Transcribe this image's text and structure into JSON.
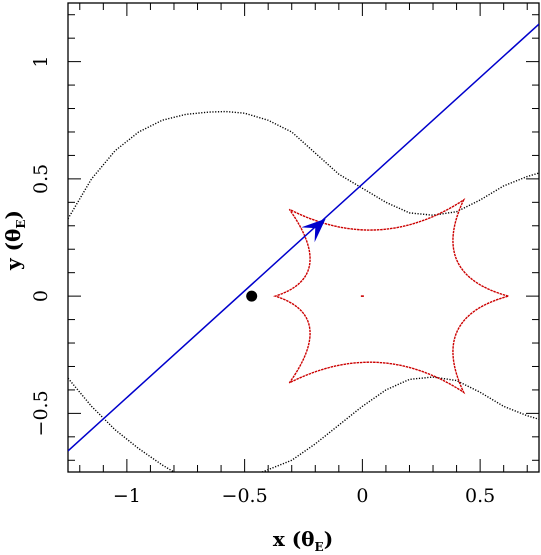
{
  "chart_data": {
    "type": "line",
    "xlim": [
      -1.25,
      0.75
    ],
    "ylim": [
      -0.75,
      1.25
    ],
    "xticks": [
      -1,
      -0.5,
      0,
      0.5
    ],
    "yticks": [
      -0.5,
      0,
      0.5,
      1
    ],
    "xtick_labels": [
      "−1",
      "−0.5",
      "0",
      "0.5"
    ],
    "ytick_labels": [
      "−0.5",
      "0",
      "0.5",
      "1"
    ],
    "xlabel": {
      "main": "x (θ",
      "sub": "E",
      "close": ")"
    },
    "ylabel": {
      "main": "y (θ",
      "sub": "E",
      "close": ")"
    },
    "grid": false,
    "colors": {
      "critical_curve": "#000000",
      "caustic": "#cc0000",
      "trajectory": "#0000cc",
      "lens": "#000000"
    },
    "trajectory": {
      "x": [
        -1.25,
        0.75
      ],
      "y": [
        -0.66,
        1.16
      ]
    },
    "trajectory_arrow": {
      "x": -0.2,
      "y": 0.29
    },
    "lens_point": {
      "x": -0.47,
      "y": 0.0
    },
    "central_caustic_point": {
      "x": 0.0,
      "y": 0.0
    },
    "caustic_cusps": [
      {
        "x": 0.62,
        "y": 0.0
      },
      {
        "x": 0.43,
        "y": 0.41
      },
      {
        "x": -0.31,
        "y": 0.37
      },
      {
        "x": -0.37,
        "y": 0.0
      },
      {
        "x": -0.31,
        "y": -0.37
      },
      {
        "x": 0.43,
        "y": -0.41
      }
    ],
    "critical_curve_upper": {
      "x": [
        -1.25,
        -1.15,
        -1.05,
        -0.95,
        -0.85,
        -0.75,
        -0.65,
        -0.58,
        -0.5,
        -0.4,
        -0.3,
        -0.2,
        -0.1,
        0.0,
        0.1,
        0.2,
        0.3,
        0.4,
        0.5,
        0.6,
        0.7,
        0.75
      ],
      "y": [
        0.33,
        0.5,
        0.62,
        0.7,
        0.75,
        0.775,
        0.785,
        0.787,
        0.78,
        0.75,
        0.7,
        0.61,
        0.52,
        0.46,
        0.4,
        0.355,
        0.345,
        0.36,
        0.41,
        0.47,
        0.51,
        0.525
      ]
    },
    "critical_curve_lower": {
      "x": [
        -1.25,
        -1.15,
        -1.05,
        -0.95,
        -0.85,
        -0.8,
        -0.75,
        -0.7,
        -0.6,
        -0.5,
        -0.4,
        -0.3,
        -0.2,
        -0.1,
        0.0,
        0.1,
        0.2,
        0.3,
        0.4,
        0.5,
        0.6,
        0.7,
        0.75
      ],
      "y": [
        -0.35,
        -0.47,
        -0.57,
        -0.65,
        -0.72,
        -0.75,
        -0.78,
        -0.8,
        -0.8,
        -0.78,
        -0.74,
        -0.7,
        -0.63,
        -0.55,
        -0.47,
        -0.4,
        -0.355,
        -0.345,
        -0.36,
        -0.41,
        -0.47,
        -0.51,
        -0.525
      ]
    }
  }
}
